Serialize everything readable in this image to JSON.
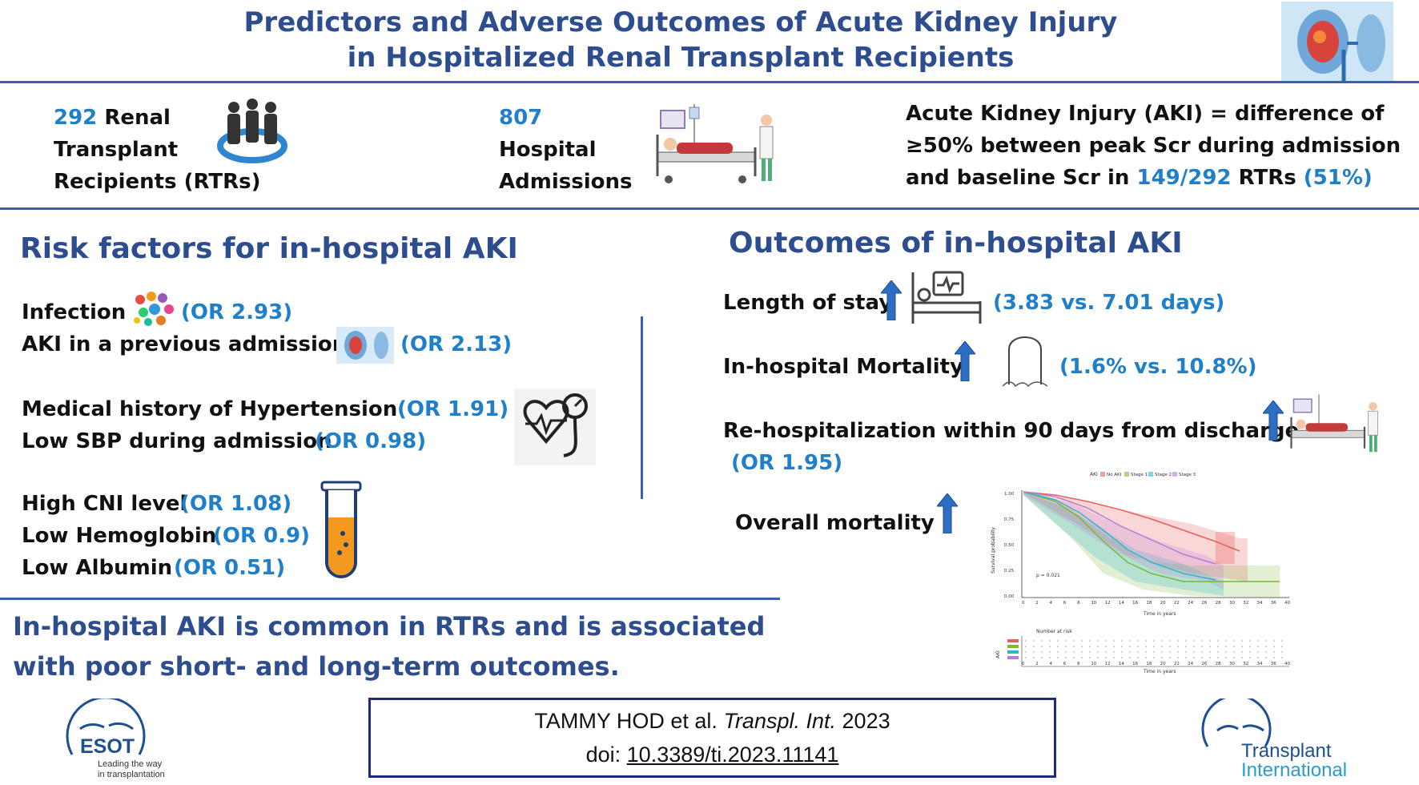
{
  "header": {
    "title_line1": "Predictors and Adverse Outcomes of Acute Kidney Injury",
    "title_line2": "in Hospitalized Renal Transplant Recipients",
    "kidney_icon": "kidney-image-icon"
  },
  "summary": {
    "rtr_count": "292",
    "rtr_word": "Renal",
    "rtr_line2": "Transplant",
    "rtr_line3": "Recipients (RTRs)",
    "people_icon": "people-group-icon",
    "admissions_count": "807",
    "admissions_line2": "Hospital",
    "admissions_line3": "Admissions",
    "hospital_icon": "hospital-bed-icon",
    "aki_def_line1": "Acute Kidney Injury (AKI) = difference of",
    "aki_def_line2": "≥50% between peak Scr during admission",
    "aki_def_line3_pre": "and baseline Scr in",
    "aki_def_ratio": "149/292",
    "aki_def_rtrs": "RTRs",
    "aki_def_pct": "(51%)"
  },
  "risk": {
    "heading": "Risk factors for in-hospital AKI",
    "infection": "Infection",
    "infection_or": "(OR 2.93)",
    "prev_aki": "AKI in a previous admission",
    "prev_aki_or": "(OR 2.13)",
    "htn": "Medical history of Hypertension",
    "htn_or": "(OR 1.91)",
    "sbp": "Low SBP during admission",
    "sbp_or": "(OR 0.98)",
    "cni": "High CNI level",
    "cni_or": "(OR 1.08)",
    "hb": "Low Hemoglobin",
    "hb_or": "(OR 0.9)",
    "alb": "Low Albumin",
    "alb_or": "(OR 0.51)"
  },
  "outcomes": {
    "heading": "Outcomes of in-hospital AKI",
    "los": "Length of stay",
    "los_val": "(3.83 vs. 7.01 days)",
    "mort": "In-hospital Mortality",
    "mort_val": "(1.6% vs. 10.8%)",
    "rehosp": "Re-hospitalization within 90 days from discharge",
    "rehosp_or": "(OR 1.95)",
    "overall": "Overall mortality"
  },
  "km_plot": {
    "legend_title": "AKI",
    "legend_items": [
      "No AKI",
      "Stage 1",
      "Stage 2",
      "Stage 3"
    ],
    "colors": [
      "#e8605a",
      "#7ab83a",
      "#2fb7c9",
      "#b97ad8"
    ],
    "y_label": "Survival probability",
    "y_ticks": [
      "1.00",
      "0.75",
      "0.50",
      "0.25",
      "0.00"
    ],
    "x_ticks": [
      "0",
      "2",
      "4",
      "6",
      "8",
      "10",
      "12",
      "14",
      "16",
      "18",
      "20",
      "22",
      "24",
      "26",
      "28",
      "30",
      "32",
      "34",
      "36",
      "40"
    ],
    "x_label": "Time in years",
    "p_value": "p = 0.021",
    "risk_title": "Number at risk",
    "risk_axis": "AKI"
  },
  "conclusion": {
    "line1": "In-hospital AKI is common in RTRs and is associated",
    "line2": "with poor short- and long-term outcomes."
  },
  "citation": {
    "authors": "TAMMY HOD et al.",
    "journal": "Transpl. Int.",
    "year": "2023",
    "doi_label": "doi:",
    "doi": "10.3389/ti.2023.11141"
  },
  "esot_logo": {
    "name": "ESOT",
    "tagline1": "Leading the way",
    "tagline2": "in transplantation"
  },
  "ti_logo": {
    "line1": "Transplant",
    "line2": "International"
  }
}
